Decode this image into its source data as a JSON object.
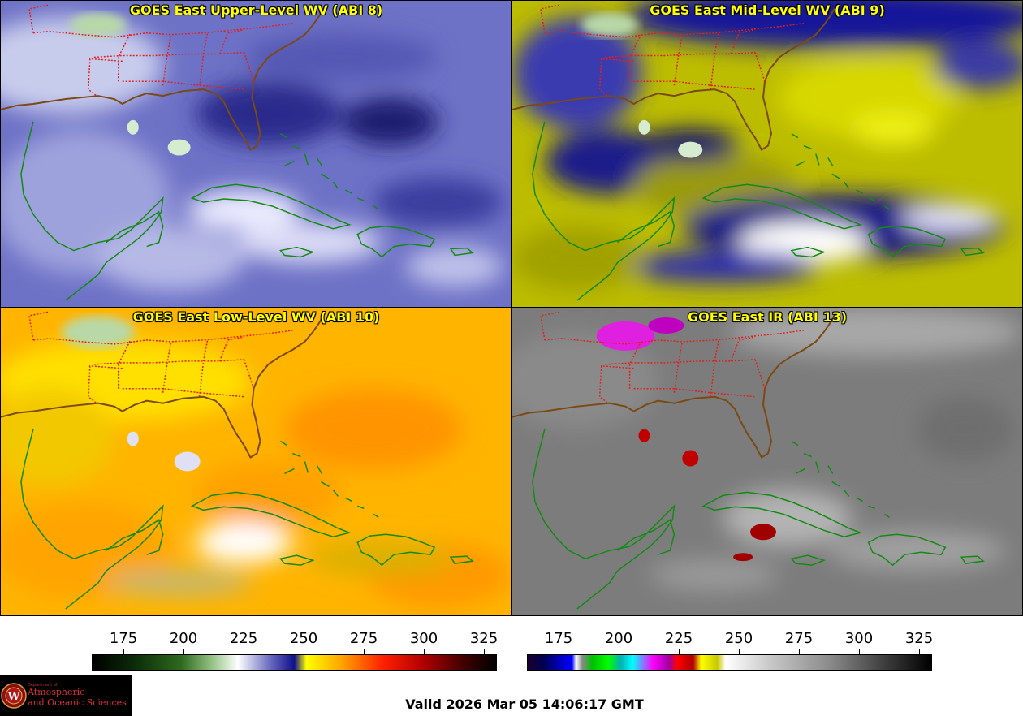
{
  "panels": [
    {
      "title": "GOES East Upper-Level WV (ABI 8)"
    },
    {
      "title": "GOES East Mid-Level WV (ABI 9)"
    },
    {
      "title": "GOES East Low-Level WV (ABI 10)"
    },
    {
      "title": "GOES East IR (ABI 13)"
    }
  ],
  "colorbars": [
    {
      "ticks": [
        "175",
        "200",
        "225",
        "250",
        "275",
        "300",
        "325"
      ]
    },
    {
      "ticks": [
        "175",
        "200",
        "225",
        "250",
        "275",
        "300",
        "325"
      ]
    }
  ],
  "valid_time": "Valid 2026 Mar 05 14:06:17 GMT",
  "logo": {
    "dept": "Department of",
    "line1": "Atmospheric",
    "line2": "and Oceanic Sciences",
    "seal_letter": "W"
  },
  "colors": {
    "title_text": "#ffff00",
    "coastline": "#138a13",
    "state_border": "#e02020",
    "logo_red": "#d03030"
  }
}
